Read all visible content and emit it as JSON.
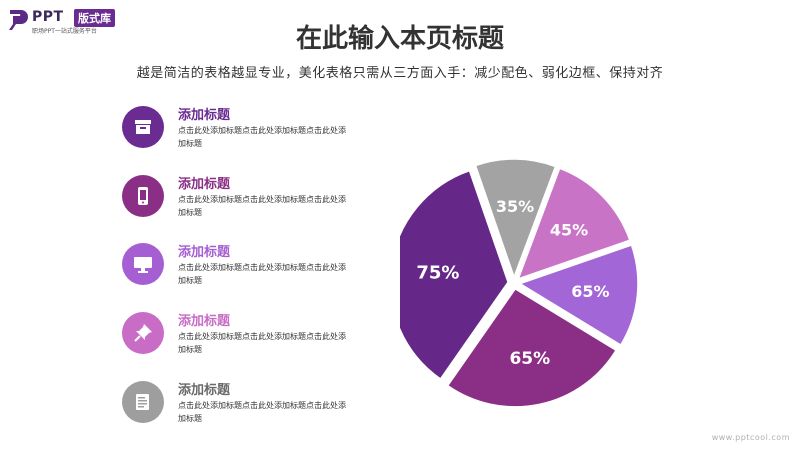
{
  "logo": {
    "brand": "PPT",
    "tag": "版式库",
    "sub": "职场PPT一站式服务平台"
  },
  "header": {
    "title": "在此输入本页标题",
    "subtitle": "越是简洁的表格越显专业，美化表格只需从三方面入手：减少配色、弱化边框、保持对齐"
  },
  "items": [
    {
      "title": "添加标题",
      "desc": "点击此处添加标题点击此处添加标题点击此处添加标题",
      "color": "#6a2c91",
      "icon": "archive-box-icon"
    },
    {
      "title": "添加标题",
      "desc": "点击此处添加标题点击此处添加标题点击此处添加标题",
      "color": "#8b2f86",
      "icon": "tablet-icon"
    },
    {
      "title": "添加标题",
      "desc": "点击此处添加标题点击此处添加标题点击此处添加标题",
      "color": "#a55fd2",
      "icon": "monitor-icon"
    },
    {
      "title": "添加标题",
      "desc": "点击此处添加标题点击此处添加标题点击此处添加标题",
      "color": "#c86cc6",
      "icon": "pushpin-icon"
    },
    {
      "title": "添加标题",
      "desc": "点击此处添加标题点击此处添加标题点击此处添加标题",
      "color": "#9e9e9e",
      "icon": "document-icon"
    }
  ],
  "chart_data": {
    "type": "pie",
    "slices": [
      {
        "label": "35%",
        "share": 0.11,
        "color": "#a3a3a3"
      },
      {
        "label": "45%",
        "share": 0.14,
        "color": "#c873c6"
      },
      {
        "label": "65%",
        "share": 0.14,
        "color": "#a366d6"
      },
      {
        "label": "65%",
        "share": 0.26,
        "color": "#8b2f86"
      },
      {
        "label": "75%",
        "share": 0.35,
        "color": "#652889"
      }
    ]
  },
  "watermark": "www.pptcool.com"
}
